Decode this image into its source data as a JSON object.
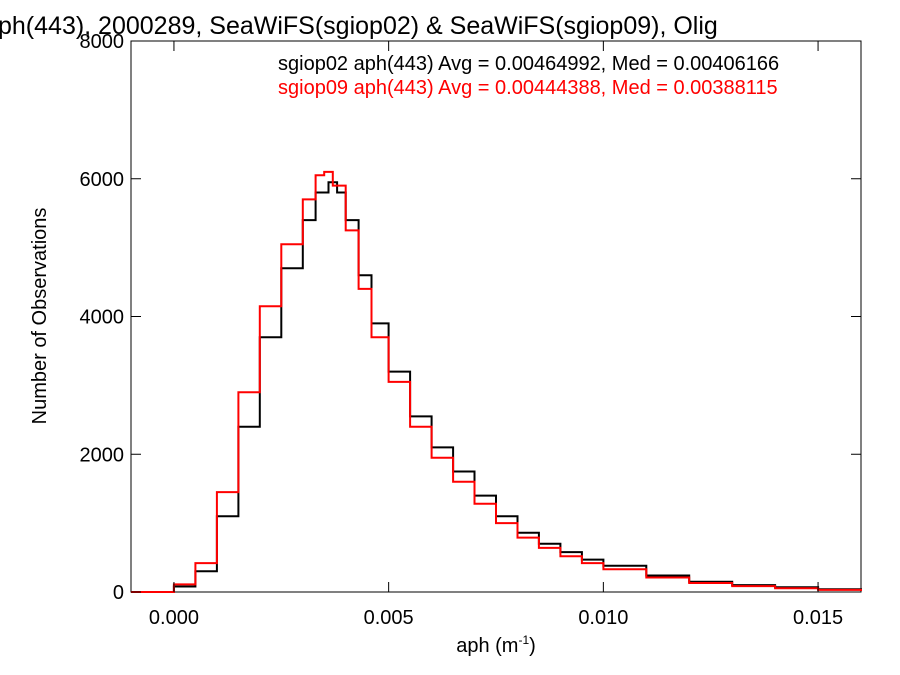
{
  "chart_data": {
    "type": "line",
    "title": "ph(443), 2000289, SeaWiFS(sgiop02) & SeaWiFS(sgiop09), Olig",
    "xlabel_main": "aph (m",
    "xlabel_sup": "-1",
    "xlabel_close": ")",
    "ylabel": "Number of Observations",
    "xlim": [
      -0.001,
      0.016
    ],
    "ylim": [
      0,
      8000
    ],
    "xticks": [
      0.0,
      0.005,
      0.01,
      0.015
    ],
    "xtick_labels": [
      "0.000",
      "0.005",
      "0.010",
      "0.015"
    ],
    "yticks": [
      0,
      2000,
      4000,
      6000,
      8000
    ],
    "ytick_labels": [
      "0",
      "2000",
      "4000",
      "6000",
      "8000"
    ],
    "grid": false,
    "legend_position": "top-right",
    "series": [
      {
        "name": "sgiop02 aph(443) Avg = 0.00464992, Med = 0.00406166",
        "color": "#000000",
        "x": [
          -0.001,
          -0.0005,
          0.0,
          0.0005,
          0.001,
          0.0015,
          0.002,
          0.0025,
          0.003,
          0.0033,
          0.0036,
          0.0038,
          0.004,
          0.0043,
          0.0046,
          0.005,
          0.0055,
          0.006,
          0.0065,
          0.007,
          0.0075,
          0.008,
          0.0085,
          0.009,
          0.0095,
          0.01,
          0.011,
          0.012,
          0.013,
          0.014,
          0.015,
          0.016
        ],
        "y": [
          0,
          0,
          80,
          300,
          1100,
          2400,
          3700,
          4700,
          5400,
          5800,
          5950,
          5800,
          5400,
          4600,
          3900,
          3200,
          2550,
          2100,
          1750,
          1400,
          1100,
          860,
          700,
          580,
          470,
          380,
          240,
          150,
          100,
          70,
          40,
          20
        ]
      },
      {
        "name": "sgiop09 aph(443) Avg = 0.00444388, Med = 0.00388115",
        "color": "#ff0000",
        "x": [
          -0.001,
          -0.0005,
          0.0,
          0.0005,
          0.001,
          0.0015,
          0.002,
          0.0025,
          0.003,
          0.0033,
          0.0035,
          0.0037,
          0.004,
          0.0043,
          0.0046,
          0.005,
          0.0055,
          0.006,
          0.0065,
          0.007,
          0.0075,
          0.008,
          0.0085,
          0.009,
          0.0095,
          0.01,
          0.011,
          0.012,
          0.013,
          0.014,
          0.015,
          0.016
        ],
        "y": [
          0,
          0,
          110,
          420,
          1450,
          2900,
          4150,
          5050,
          5700,
          6050,
          6100,
          5900,
          5250,
          4400,
          3700,
          3050,
          2400,
          1950,
          1600,
          1280,
          1000,
          790,
          640,
          520,
          420,
          330,
          210,
          130,
          85,
          55,
          30,
          15
        ]
      }
    ]
  }
}
